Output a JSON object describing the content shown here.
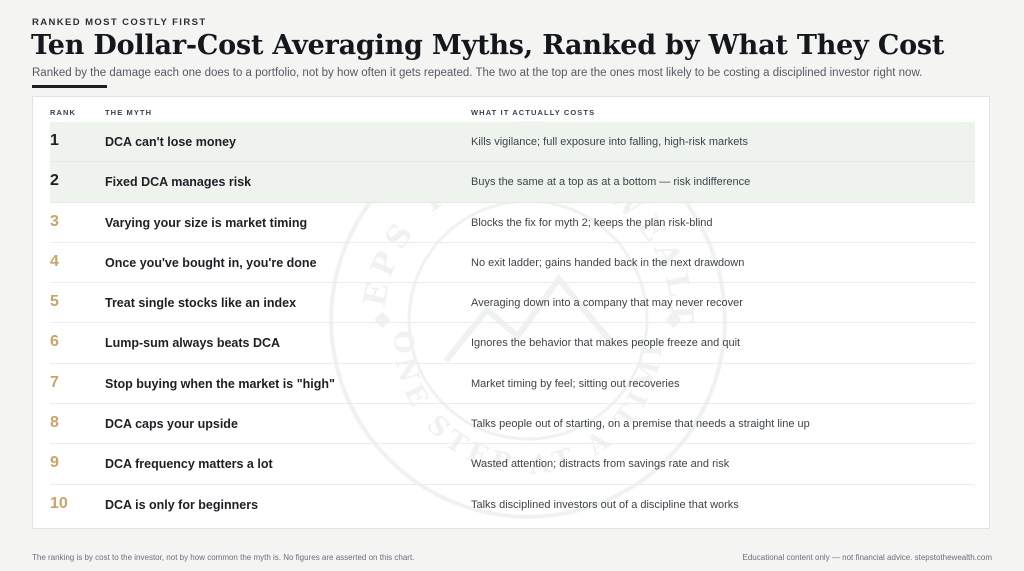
{
  "header": {
    "eyebrow": "RANKED MOST COSTLY FIRST",
    "title": "Ten Dollar-Cost Averaging Myths, Ranked by What They Cost",
    "subtitle": "Ranked by the damage each one does to a portfolio, not by how often it gets repeated. The two at the top are the ones most likely to be costing a disciplined investor right now."
  },
  "table": {
    "columns": {
      "rank": "RANK",
      "myth": "THE MYTH",
      "cost": "WHAT IT ACTUALLY COSTS"
    },
    "rows": [
      {
        "rank": "1",
        "myth": "DCA can't lose money",
        "cost": "Kills vigilance; full exposure into falling, high-risk markets",
        "highlighted": true
      },
      {
        "rank": "2",
        "myth": "Fixed DCA manages risk",
        "cost": "Buys the same at a top as at a bottom — risk indifference",
        "highlighted": true
      },
      {
        "rank": "3",
        "myth": "Varying your size is market timing",
        "cost": "Blocks the fix for myth 2; keeps the plan risk-blind",
        "highlighted": false
      },
      {
        "rank": "4",
        "myth": "Once you've bought in, you're done",
        "cost": "No exit ladder; gains handed back in the next drawdown",
        "highlighted": false
      },
      {
        "rank": "5",
        "myth": "Treat single stocks like an index",
        "cost": "Averaging down into a company that may never recover",
        "highlighted": false
      },
      {
        "rank": "6",
        "myth": "Lump-sum always beats DCA",
        "cost": "Ignores the behavior that makes people freeze and quit",
        "highlighted": false
      },
      {
        "rank": "7",
        "myth": "Stop buying when the market is \"high\"",
        "cost": "Market timing by feel; sitting out recoveries",
        "highlighted": false
      },
      {
        "rank": "8",
        "myth": "DCA caps your upside",
        "cost": "Talks people out of starting, on a premise that needs a straight line up",
        "highlighted": false
      },
      {
        "rank": "9",
        "myth": "DCA frequency matters a lot",
        "cost": "Wasted attention; distracts from savings rate and risk",
        "highlighted": false
      },
      {
        "rank": "10",
        "myth": "DCA is only for beginners",
        "cost": "Talks disciplined investors out of a discipline that works",
        "highlighted": false
      }
    ]
  },
  "footer": {
    "note": "The ranking is by cost to the investor, not by how common the myth is. No figures are asserted on this chart.",
    "disclaimer": "Educational content only — not financial advice.  stepstothewealth.com"
  },
  "watermark": {
    "icon": "seal-logo-icon",
    "text_top": "STEPS TO THE WEALTH",
    "text_bottom": "ONE STEP AT A TIME"
  },
  "colors": {
    "rank_top": "#1c1f24",
    "rank_other": "#c7a46a",
    "highlight_row": "#eef3ee"
  }
}
